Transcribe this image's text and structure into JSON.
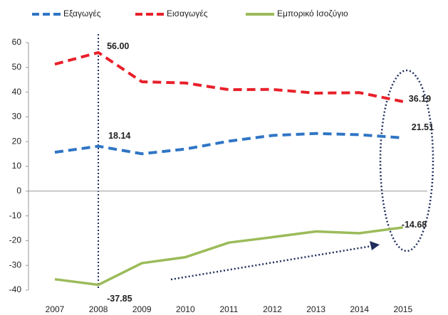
{
  "chart_data": {
    "type": "line",
    "categories": [
      "2007",
      "2008",
      "2009",
      "2010",
      "2011",
      "2012",
      "2013",
      "2014",
      "2015"
    ],
    "series": [
      {
        "name": "Εξαγωγές",
        "color": "#2f75c5",
        "dash": true,
        "values": [
          15.7,
          18.14,
          15.1,
          17,
          20.2,
          22.5,
          23.3,
          22.8,
          21.51
        ],
        "value_labels": [
          null,
          "18.14",
          null,
          null,
          null,
          null,
          null,
          null,
          "21.51"
        ]
      },
      {
        "name": "Εισαγωγές",
        "color": "#e8202a",
        "dash": true,
        "values": [
          51.3,
          56.0,
          44.2,
          43.7,
          41,
          41.1,
          39.6,
          39.8,
          36.19
        ],
        "value_labels": [
          null,
          "56.00",
          null,
          null,
          null,
          null,
          null,
          null,
          "36.19"
        ]
      },
      {
        "name": "Εμπορικό Ισοζύγιο",
        "color": "#9bbb59",
        "dash": false,
        "values": [
          -35.6,
          -37.85,
          -29.1,
          -26.7,
          -20.8,
          -18.6,
          -16.3,
          -17,
          -14.68
        ],
        "value_labels": [
          null,
          "-37.85",
          null,
          null,
          null,
          null,
          null,
          null,
          "-14.68"
        ]
      }
    ],
    "ylim": [
      -40,
      60
    ],
    "yticks": [
      -40,
      -30,
      -20,
      -10,
      0,
      10,
      20,
      30,
      40,
      50,
      60
    ],
    "grid": false,
    "legend": "top"
  }
}
